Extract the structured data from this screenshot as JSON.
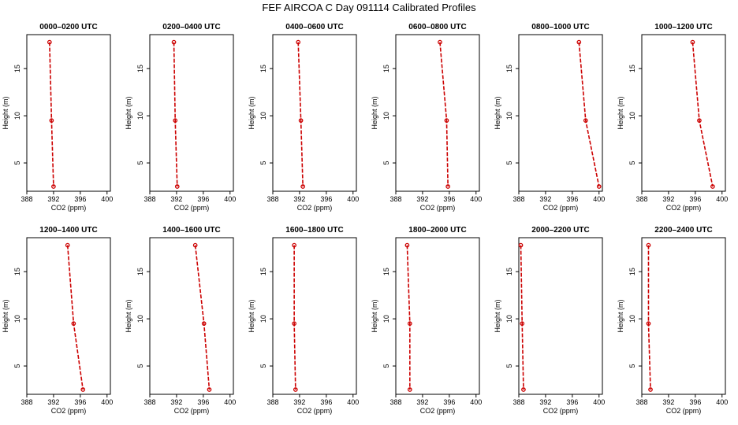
{
  "title": "FEF AIRCOA C  Day 091114  Calibrated Profiles",
  "chart_data": {
    "type": "line",
    "xlabel": "CO2 (ppm)",
    "ylabel": "Height (m)",
    "xlim": [
      388,
      400.5
    ],
    "ylim": [
      2,
      18.6
    ],
    "xticks": [
      388,
      392,
      396,
      400
    ],
    "yticks": [
      5,
      10,
      15
    ],
    "line_color": "#cc0000",
    "panels": [
      {
        "title": "0000–0200 UTC",
        "points": [
          {
            "co2": 391.4,
            "height": 17.8
          },
          {
            "co2": 391.7,
            "height": 9.5
          },
          {
            "co2": 392.0,
            "height": 2.5
          }
        ]
      },
      {
        "title": "0200–0400 UTC",
        "points": [
          {
            "co2": 391.6,
            "height": 17.8
          },
          {
            "co2": 391.8,
            "height": 9.5
          },
          {
            "co2": 392.1,
            "height": 2.5
          }
        ]
      },
      {
        "title": "0400–0600 UTC",
        "points": [
          {
            "co2": 391.8,
            "height": 17.8
          },
          {
            "co2": 392.2,
            "height": 9.5
          },
          {
            "co2": 392.5,
            "height": 2.5
          }
        ]
      },
      {
        "title": "0600–0800 UTC",
        "points": [
          {
            "co2": 394.6,
            "height": 17.8
          },
          {
            "co2": 395.6,
            "height": 9.5
          },
          {
            "co2": 395.8,
            "height": 2.5
          }
        ]
      },
      {
        "title": "0800–1000 UTC",
        "points": [
          {
            "co2": 397.0,
            "height": 17.8
          },
          {
            "co2": 398.0,
            "height": 9.5
          },
          {
            "co2": 400.0,
            "height": 2.5
          }
        ]
      },
      {
        "title": "1000–1200 UTC",
        "points": [
          {
            "co2": 395.6,
            "height": 17.8
          },
          {
            "co2": 396.6,
            "height": 9.5
          },
          {
            "co2": 398.6,
            "height": 2.5
          }
        ]
      },
      {
        "title": "1200–1400 UTC",
        "points": [
          {
            "co2": 394.1,
            "height": 17.8
          },
          {
            "co2": 395.0,
            "height": 9.5
          },
          {
            "co2": 396.4,
            "height": 2.5
          }
        ]
      },
      {
        "title": "1400–1600 UTC",
        "points": [
          {
            "co2": 394.8,
            "height": 17.8
          },
          {
            "co2": 396.1,
            "height": 9.5
          },
          {
            "co2": 396.9,
            "height": 2.5
          }
        ]
      },
      {
        "title": "1600–1800 UTC",
        "points": [
          {
            "co2": 391.2,
            "height": 17.8
          },
          {
            "co2": 391.2,
            "height": 9.5
          },
          {
            "co2": 391.4,
            "height": 2.5
          }
        ]
      },
      {
        "title": "1800–2000 UTC",
        "points": [
          {
            "co2": 389.7,
            "height": 17.8
          },
          {
            "co2": 390.1,
            "height": 9.5
          },
          {
            "co2": 390.1,
            "height": 2.5
          }
        ]
      },
      {
        "title": "2000–2200 UTC",
        "points": [
          {
            "co2": 388.3,
            "height": 17.8
          },
          {
            "co2": 388.5,
            "height": 9.5
          },
          {
            "co2": 388.7,
            "height": 2.5
          }
        ]
      },
      {
        "title": "2200–2400 UTC",
        "points": [
          {
            "co2": 389.0,
            "height": 17.8
          },
          {
            "co2": 389.0,
            "height": 9.5
          },
          {
            "co2": 389.3,
            "height": 2.5
          }
        ]
      }
    ]
  }
}
